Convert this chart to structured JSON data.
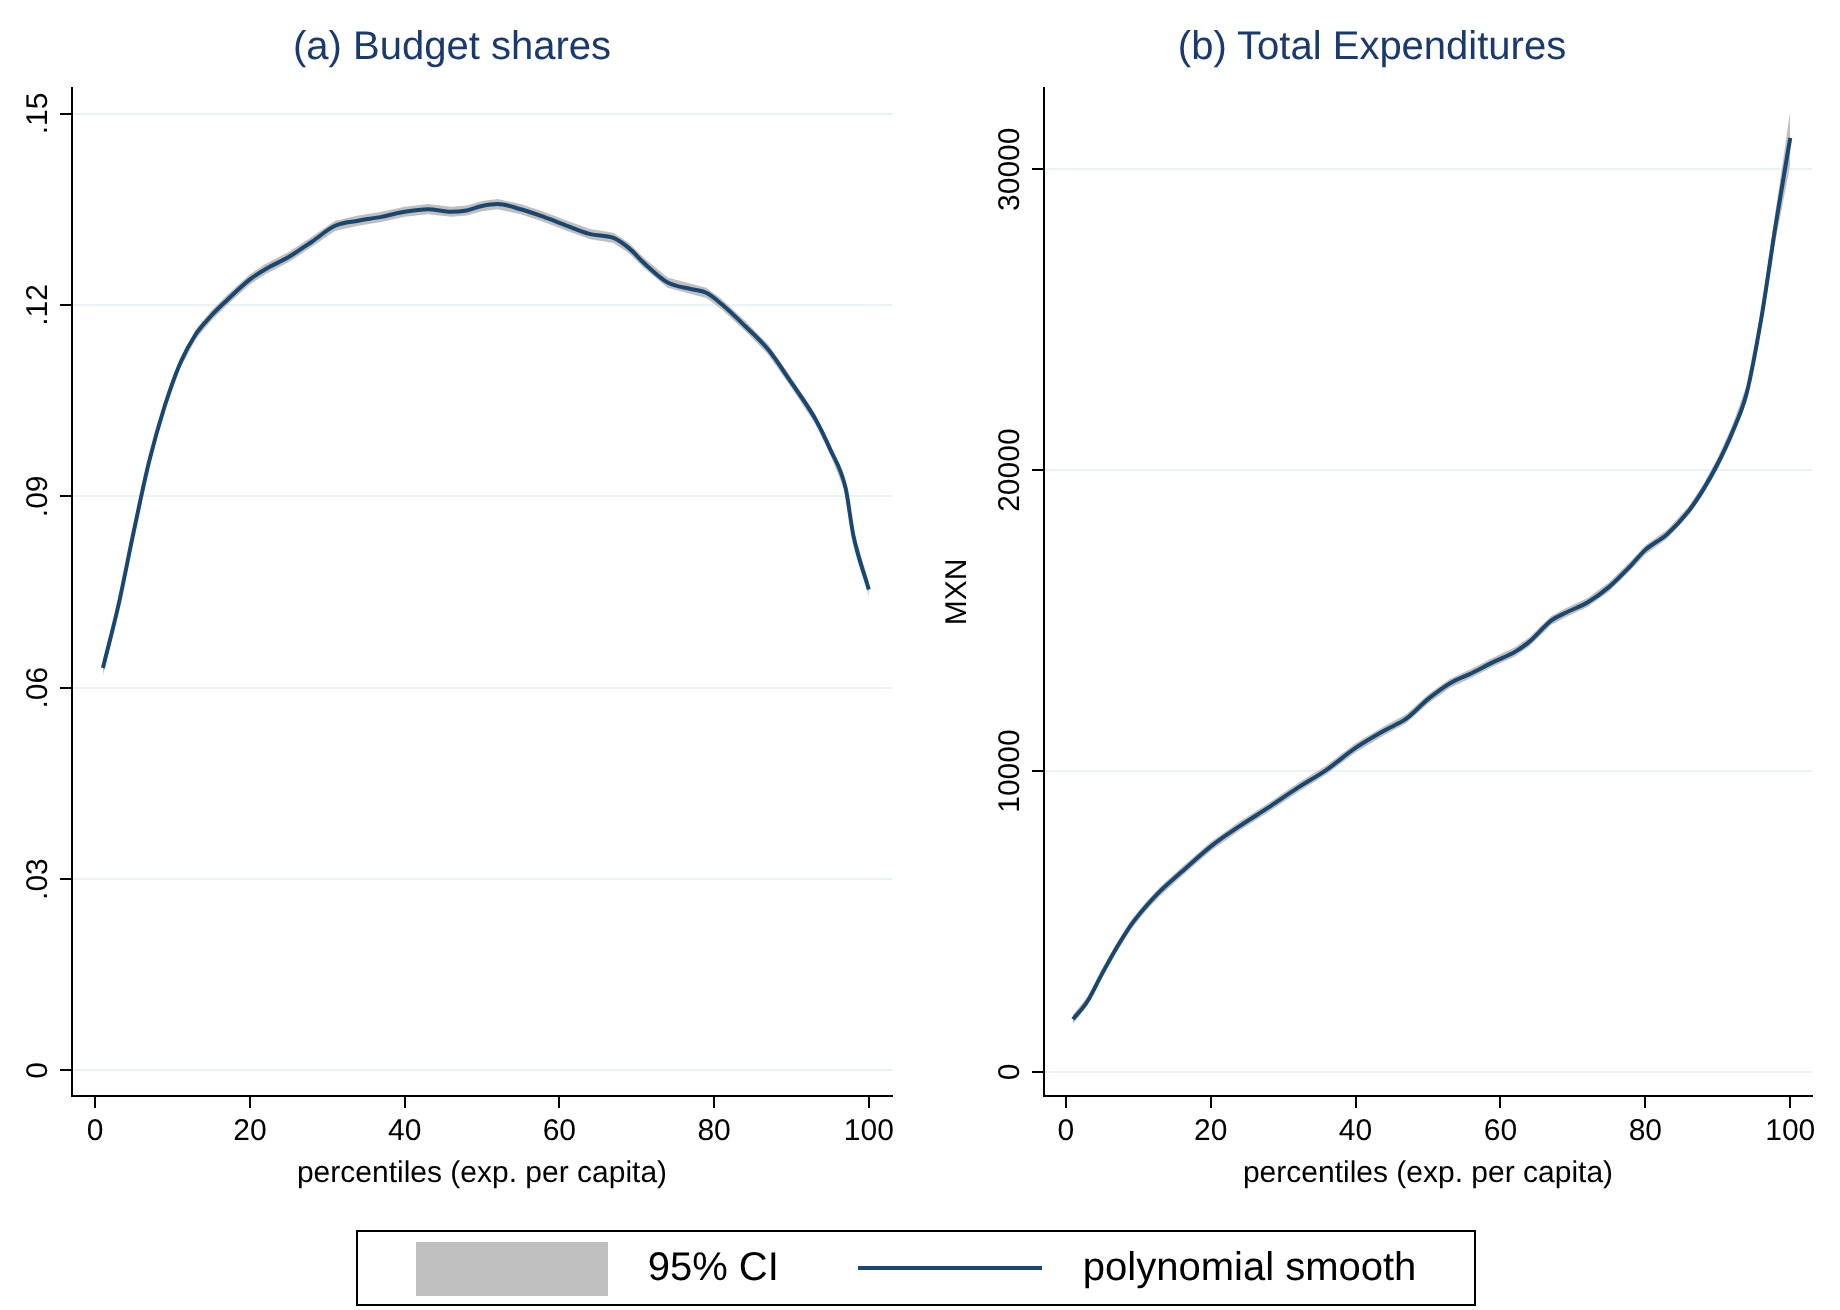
{
  "chart_data": [
    {
      "type": "line",
      "title": "(a) Budget shares",
      "xlabel": "percentiles (exp. per capita)",
      "xlim": [
        -3,
        103
      ],
      "xticks": [
        0,
        20,
        40,
        60,
        80,
        100
      ],
      "ylim": [
        -0.004,
        0.154
      ],
      "yticks": [
        0,
        {
          "value": 0.03,
          "label": ".03"
        },
        {
          "value": 0.06,
          "label": ".06"
        },
        {
          "value": 0.09,
          "label": ".09"
        },
        {
          "value": 0.12,
          "label": ".12"
        },
        {
          "value": 0.15,
          "label": ".15"
        }
      ],
      "grid": "y",
      "legend": "bottom",
      "annotations": [
        "95% CI"
      ],
      "x": [
        1,
        3,
        5,
        7,
        9,
        11,
        13,
        15,
        17,
        20,
        22,
        25,
        28,
        31,
        34,
        37,
        40,
        43,
        46,
        48,
        50,
        52,
        55,
        58,
        61,
        64,
        67,
        69,
        71,
        74,
        77,
        79,
        81,
        84,
        87,
        90,
        93,
        95,
        97,
        98,
        100
      ],
      "series": [
        {
          "name": "polynomial smooth",
          "type": "line",
          "color": "#1a476f",
          "values": [
            0.0631,
            0.0729,
            0.0846,
            0.0956,
            0.1042,
            0.1109,
            0.1154,
            0.1183,
            0.1207,
            0.124,
            0.1256,
            0.1275,
            0.1299,
            0.1324,
            0.1332,
            0.1338,
            0.1346,
            0.135,
            0.1346,
            0.1348,
            0.1355,
            0.1358,
            0.135,
            0.1338,
            0.1324,
            0.1311,
            0.1305,
            0.1289,
            0.1265,
            0.1235,
            0.1225,
            0.1219,
            0.1201,
            0.1167,
            0.113,
            0.1078,
            0.1023,
            0.0974,
            0.0913,
            0.0839,
            0.0754
          ],
          "lower": [
            0.0619,
            0.0719,
            0.0837,
            0.0948,
            0.1034,
            0.1101,
            0.1146,
            0.1175,
            0.1199,
            0.1232,
            0.1248,
            0.1267,
            0.1291,
            0.1316,
            0.1324,
            0.133,
            0.1338,
            0.1342,
            0.1338,
            0.134,
            0.1347,
            0.135,
            0.1342,
            0.133,
            0.1316,
            0.1303,
            0.1297,
            0.1281,
            0.1257,
            0.1227,
            0.1217,
            0.1211,
            0.1193,
            0.1159,
            0.1122,
            0.107,
            0.1015,
            0.0966,
            0.0905,
            0.0831,
            0.0742
          ],
          "upper": [
            0.0643,
            0.0739,
            0.0855,
            0.0964,
            0.105,
            0.1117,
            0.1162,
            0.1191,
            0.1215,
            0.1248,
            0.1264,
            0.1283,
            0.1307,
            0.1332,
            0.134,
            0.1346,
            0.1354,
            0.1358,
            0.1354,
            0.1356,
            0.1363,
            0.1366,
            0.1358,
            0.1346,
            0.1332,
            0.1319,
            0.1313,
            0.1297,
            0.1273,
            0.1243,
            0.1233,
            0.1227,
            0.1209,
            0.1175,
            0.1138,
            0.1086,
            0.1031,
            0.0982,
            0.0921,
            0.0847,
            0.0766
          ]
        }
      ]
    },
    {
      "type": "line",
      "title": "(b) Total Expenditures",
      "xlabel": "percentiles (exp. per capita)",
      "ylabel": "MXN",
      "xlim": [
        -3,
        103
      ],
      "xticks": [
        0,
        20,
        40,
        60,
        80,
        100
      ],
      "ylim": [
        -800,
        32700
      ],
      "yticks": [
        0,
        10000,
        20000,
        30000
      ],
      "grid": "y",
      "x": [
        1,
        3,
        5,
        7,
        9,
        11,
        13,
        16,
        20,
        24,
        28,
        32,
        36,
        40,
        44,
        47,
        50,
        53,
        56,
        59,
        62,
        64,
        67,
        69,
        72,
        75,
        78,
        80,
        83,
        86,
        88,
        90,
        92,
        94,
        96,
        98,
        100
      ],
      "series": [
        {
          "type": "line",
          "color": "#1a476f",
          "values": [
            1750,
            2350,
            3260,
            4120,
            4880,
            5480,
            6000,
            6650,
            7490,
            8170,
            8790,
            9440,
            10040,
            10770,
            11350,
            11740,
            12390,
            12910,
            13250,
            13620,
            13960,
            14300,
            15000,
            15260,
            15600,
            16120,
            16830,
            17350,
            17870,
            18650,
            19360,
            20220,
            21260,
            22570,
            25040,
            28170,
            31040
          ],
          "lower": [
            1600,
            2200,
            3110,
            3970,
            4730,
            5330,
            5850,
            6500,
            7340,
            8020,
            8640,
            9290,
            9890,
            10620,
            11200,
            11590,
            12240,
            12760,
            13100,
            13470,
            13810,
            14150,
            14850,
            15110,
            15450,
            15970,
            16680,
            17200,
            17720,
            18500,
            19190,
            20020,
            21030,
            22300,
            24740,
            27670,
            30140
          ],
          "upper": [
            1900,
            2500,
            3410,
            4270,
            5030,
            5630,
            6150,
            6800,
            7640,
            8320,
            8940,
            9590,
            10190,
            10920,
            11500,
            11890,
            12540,
            13060,
            13400,
            13770,
            14110,
            14450,
            15150,
            15410,
            15750,
            16270,
            16980,
            17500,
            18020,
            18800,
            19530,
            20420,
            21490,
            22840,
            25340,
            28670,
            31940
          ]
        }
      ]
    }
  ]
}
